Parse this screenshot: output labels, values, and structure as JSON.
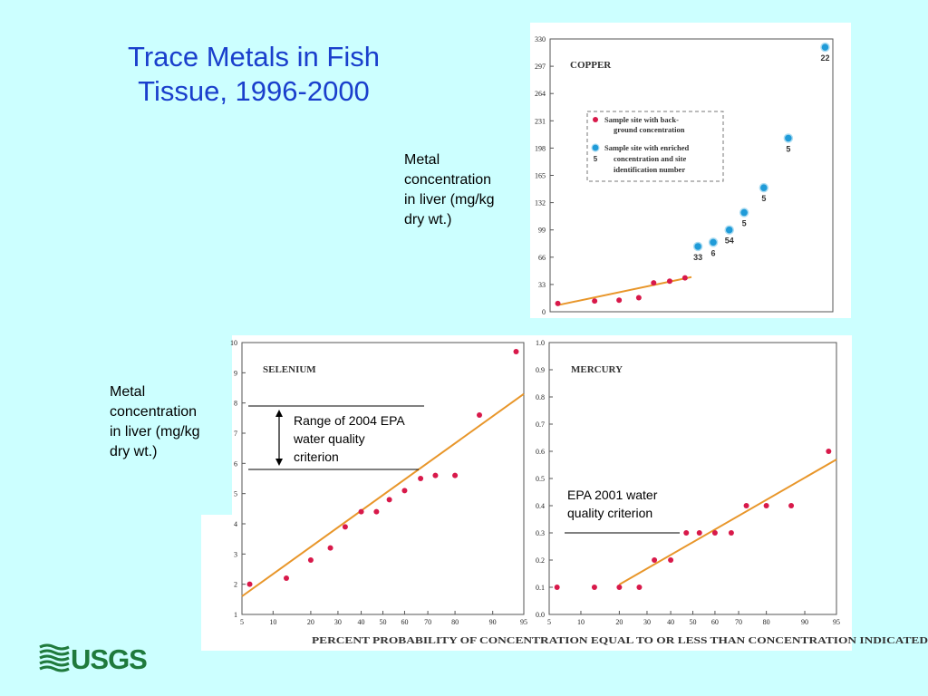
{
  "slide": {
    "title_line1": "Trace Metals in Fish",
    "title_line2": "Tissue, 1996-2000",
    "ylabel_note_lines": [
      "Metal",
      "concentration",
      "in liver (mg/kg",
      "dry wt.)"
    ],
    "selenium_callout_lines": [
      "Range of 2004 EPA",
      "water quality",
      "criterion"
    ],
    "mercury_callout_lines": [
      "EPA 2001 water",
      "quality criterion"
    ],
    "xlabel": "PERCENT PROBABILITY OF CONCENTRATION EQUAL TO OR LESS THAN CONCENTRATION INDICATED",
    "logo_text": "USGS"
  },
  "colors": {
    "background": "#ccffff",
    "title": "#1a3fcc",
    "point_background": "#d8194a",
    "point_enriched": "#1f9bd8",
    "trend_line": "#e8962a",
    "logo": "#1f7a3c"
  },
  "chart_data": [
    {
      "type": "scatter",
      "title": "COPPER",
      "x_scale": "probability",
      "xlim": [
        5,
        95
      ],
      "ylim": [
        0,
        330
      ],
      "yticks": [
        0,
        33,
        66,
        99,
        132,
        165,
        198,
        231,
        264,
        297,
        330
      ],
      "legend": {
        "placement": "center",
        "background_label_lines": [
          "Sample site with back-",
          "ground concentration"
        ],
        "enriched_label_lines": [
          "Sample site with enriched",
          "concentration and site",
          "identification number"
        ],
        "enriched_example_id": "5"
      },
      "series": [
        {
          "kind": "background",
          "x": [
            6,
            13,
            20,
            27,
            33,
            40,
            47
          ],
          "y": [
            10,
            13,
            14,
            17,
            35,
            37,
            41
          ]
        },
        {
          "kind": "enriched",
          "x": [
            53,
            60,
            67,
            73,
            80,
            87,
            94
          ],
          "y": [
            79,
            84,
            99,
            120,
            150,
            210,
            320
          ],
          "ids": [
            "33",
            "6",
            "54",
            "5",
            "5",
            "5",
            "22"
          ]
        }
      ],
      "trend": {
        "x": [
          6,
          50
        ],
        "y": [
          8,
          42
        ]
      }
    },
    {
      "type": "scatter",
      "title": "SELENIUM",
      "x_scale": "probability",
      "xlim": [
        5,
        95
      ],
      "xticks": [
        5,
        10,
        20,
        30,
        40,
        50,
        60,
        70,
        80,
        90,
        95
      ],
      "ylim": [
        1,
        10
      ],
      "yticks": [
        1,
        2,
        3,
        4,
        5,
        6,
        7,
        8,
        9,
        10
      ],
      "series": [
        {
          "kind": "background",
          "x": [
            6,
            13,
            20,
            27,
            33,
            40,
            47,
            53,
            60,
            67,
            73,
            80,
            87,
            94
          ],
          "y": [
            2.0,
            2.2,
            2.8,
            3.2,
            3.9,
            4.4,
            4.4,
            4.8,
            5.1,
            5.5,
            5.6,
            5.6,
            7.6,
            9.7
          ]
        }
      ],
      "trend": {
        "x": [
          5,
          95
        ],
        "y": [
          1.6,
          8.3
        ]
      },
      "criterion_range": [
        5.8,
        7.9
      ]
    },
    {
      "type": "scatter",
      "title": "MERCURY",
      "x_scale": "probability",
      "xlim": [
        5,
        95
      ],
      "xticks": [
        5,
        10,
        20,
        30,
        40,
        50,
        60,
        70,
        80,
        90,
        95
      ],
      "ylim": [
        0,
        1.0
      ],
      "yticks": [
        0,
        0.1,
        0.2,
        0.3,
        0.4,
        0.5,
        0.6,
        0.7,
        0.8,
        0.9,
        1.0
      ],
      "series": [
        {
          "kind": "background",
          "x": [
            6,
            13,
            20,
            27,
            33,
            40,
            47,
            53,
            60,
            67,
            73,
            80,
            87,
            94
          ],
          "y": [
            0.1,
            0.1,
            0.1,
            0.1,
            0.2,
            0.2,
            0.3,
            0.3,
            0.3,
            0.3,
            0.4,
            0.4,
            0.4,
            0.6
          ]
        }
      ],
      "trend": {
        "x": [
          20,
          95
        ],
        "y": [
          0.11,
          0.57
        ]
      },
      "criterion": 0.3
    }
  ]
}
